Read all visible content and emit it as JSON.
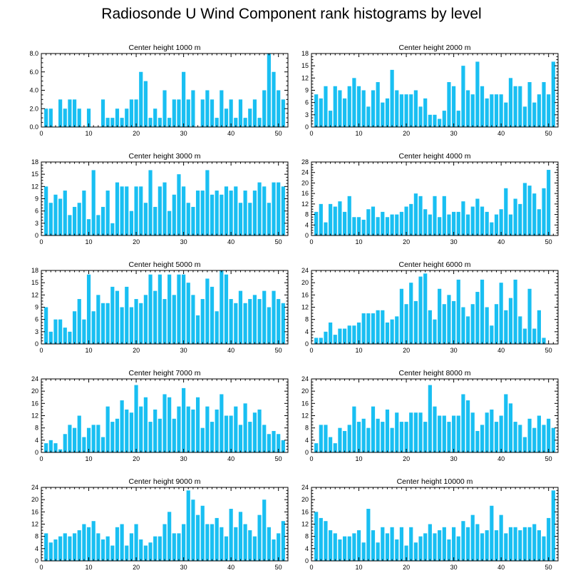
{
  "figure": {
    "title": "Radiosonde U Wind Component rank histograms by level",
    "bar_color": "#19BFF2",
    "axis_color": "#000000"
  },
  "chart_data": [
    {
      "type": "bar",
      "title": "Center height 1000 m",
      "xlim": [
        0,
        52
      ],
      "xticks": [
        0,
        10,
        20,
        30,
        40,
        50
      ],
      "ylim": [
        0,
        8
      ],
      "yticks": [
        0,
        2,
        4,
        6,
        8
      ],
      "ytick_labels": [
        "0.0",
        "2.0",
        "4.0",
        "6.0",
        "8.0"
      ],
      "x": [
        1,
        2,
        3,
        4,
        5,
        6,
        7,
        8,
        9,
        10,
        11,
        12,
        13,
        14,
        15,
        16,
        17,
        18,
        19,
        20,
        21,
        22,
        23,
        24,
        25,
        26,
        27,
        28,
        29,
        30,
        31,
        32,
        33,
        34,
        35,
        36,
        37,
        38,
        39,
        40,
        41,
        42,
        43,
        44,
        45,
        46,
        47,
        48,
        49,
        50,
        51
      ],
      "values": [
        2,
        2,
        0,
        3,
        2,
        3,
        3,
        2,
        0,
        2,
        0,
        0,
        3,
        1,
        1,
        2,
        1,
        2,
        3,
        3,
        6,
        5,
        1,
        2,
        1,
        4,
        1,
        3,
        3,
        6,
        3,
        4,
        0,
        3,
        4,
        3,
        1,
        4,
        2,
        3,
        1,
        3,
        1,
        2,
        3,
        1,
        4,
        8,
        6,
        4,
        3
      ]
    },
    {
      "type": "bar",
      "title": "Center height 2000 m",
      "xlim": [
        0,
        52
      ],
      "xticks": [
        0,
        10,
        20,
        30,
        40,
        50
      ],
      "ylim": [
        0,
        18
      ],
      "yticks": [
        0,
        3,
        6,
        9,
        12,
        15,
        18
      ],
      "ytick_labels": [
        "0",
        "3",
        "6",
        "9",
        "12",
        "15",
        "18"
      ],
      "x": [
        1,
        2,
        3,
        4,
        5,
        6,
        7,
        8,
        9,
        10,
        11,
        12,
        13,
        14,
        15,
        16,
        17,
        18,
        19,
        20,
        21,
        22,
        23,
        24,
        25,
        26,
        27,
        28,
        29,
        30,
        31,
        32,
        33,
        34,
        35,
        36,
        37,
        38,
        39,
        40,
        41,
        42,
        43,
        44,
        45,
        46,
        47,
        48,
        49,
        50,
        51
      ],
      "values": [
        8,
        7,
        10,
        4,
        10,
        9,
        7,
        10,
        12,
        10,
        9,
        5,
        9,
        11,
        6,
        7,
        14,
        9,
        8,
        8,
        8,
        9,
        5,
        7,
        3,
        3,
        2,
        4,
        11,
        10,
        4,
        15,
        9,
        8,
        16,
        10,
        7,
        8,
        8,
        8,
        6,
        12,
        10,
        10,
        5,
        11,
        6,
        8,
        11,
        8,
        16
      ]
    },
    {
      "type": "bar",
      "title": "Center height 3000 m",
      "xlim": [
        0,
        52
      ],
      "xticks": [
        0,
        10,
        20,
        30,
        40,
        50
      ],
      "ylim": [
        0,
        18
      ],
      "yticks": [
        0,
        3,
        6,
        9,
        12,
        15,
        18
      ],
      "ytick_labels": [
        "0",
        "3",
        "6",
        "9",
        "12",
        "15",
        "18"
      ],
      "x": [
        1,
        2,
        3,
        4,
        5,
        6,
        7,
        8,
        9,
        10,
        11,
        12,
        13,
        14,
        15,
        16,
        17,
        18,
        19,
        20,
        21,
        22,
        23,
        24,
        25,
        26,
        27,
        28,
        29,
        30,
        31,
        32,
        33,
        34,
        35,
        36,
        37,
        38,
        39,
        40,
        41,
        42,
        43,
        44,
        45,
        46,
        47,
        48,
        49,
        50,
        51
      ],
      "values": [
        12,
        8,
        10,
        9,
        11,
        5,
        7,
        8,
        11,
        4,
        16,
        5,
        7,
        11,
        3,
        13,
        12,
        12,
        6,
        12,
        12,
        8,
        16,
        7,
        12,
        13,
        6,
        10,
        15,
        12,
        8,
        7,
        11,
        11,
        16,
        10,
        11,
        10,
        12,
        11,
        12,
        8,
        11,
        8,
        11,
        13,
        12,
        8,
        13,
        13,
        12
      ]
    },
    {
      "type": "bar",
      "title": "Center height 4000 m",
      "xlim": [
        0,
        52
      ],
      "xticks": [
        0,
        10,
        20,
        30,
        40,
        50
      ],
      "ylim": [
        0,
        28
      ],
      "yticks": [
        0,
        4,
        8,
        12,
        16,
        20,
        24,
        28
      ],
      "ytick_labels": [
        "0",
        "4",
        "8",
        "12",
        "16",
        "20",
        "24",
        "28"
      ],
      "x": [
        1,
        2,
        3,
        4,
        5,
        6,
        7,
        8,
        9,
        10,
        11,
        12,
        13,
        14,
        15,
        16,
        17,
        18,
        19,
        20,
        21,
        22,
        23,
        24,
        25,
        26,
        27,
        28,
        29,
        30,
        31,
        32,
        33,
        34,
        35,
        36,
        37,
        38,
        39,
        40,
        41,
        42,
        43,
        44,
        45,
        46,
        47,
        48,
        49,
        50,
        51
      ],
      "values": [
        9,
        12,
        5,
        12,
        11,
        13,
        9,
        15,
        7,
        7,
        6,
        10,
        11,
        7,
        9,
        7,
        8,
        8,
        9,
        11,
        12,
        16,
        15,
        10,
        8,
        15,
        7,
        15,
        8,
        9,
        9,
        13,
        8,
        11,
        14,
        11,
        9,
        5,
        8,
        10,
        18,
        8,
        14,
        12,
        20,
        19,
        16,
        10,
        18,
        25,
        0
      ]
    },
    {
      "type": "bar",
      "title": "Center height 5000 m",
      "xlim": [
        0,
        52
      ],
      "xticks": [
        0,
        10,
        20,
        30,
        40,
        50
      ],
      "ylim": [
        0,
        18
      ],
      "yticks": [
        0,
        3,
        6,
        9,
        12,
        15,
        18
      ],
      "ytick_labels": [
        "0",
        "3",
        "6",
        "9",
        "12",
        "15",
        "18"
      ],
      "x": [
        1,
        2,
        3,
        4,
        5,
        6,
        7,
        8,
        9,
        10,
        11,
        12,
        13,
        14,
        15,
        16,
        17,
        18,
        19,
        20,
        21,
        22,
        23,
        24,
        25,
        26,
        27,
        28,
        29,
        30,
        31,
        32,
        33,
        34,
        35,
        36,
        37,
        38,
        39,
        40,
        41,
        42,
        43,
        44,
        45,
        46,
        47,
        48,
        49,
        50,
        51
      ],
      "values": [
        9,
        3,
        6,
        6,
        4,
        3,
        8,
        11,
        6,
        17,
        8,
        12,
        10,
        10,
        14,
        13,
        9,
        14,
        9,
        11,
        10,
        12,
        17,
        13,
        17,
        11,
        17,
        12,
        17,
        17,
        15,
        12,
        7,
        11,
        16,
        14,
        8,
        18,
        17,
        11,
        10,
        13,
        10,
        11,
        12,
        11,
        13,
        9,
        13,
        11,
        10
      ]
    },
    {
      "type": "bar",
      "title": "Center height 6000 m",
      "xlim": [
        0,
        52
      ],
      "xticks": [
        0,
        10,
        20,
        30,
        40,
        50
      ],
      "ylim": [
        0,
        24
      ],
      "yticks": [
        0,
        4,
        8,
        12,
        16,
        20,
        24
      ],
      "ytick_labels": [
        "0",
        "4",
        "8",
        "12",
        "16",
        "20",
        "24"
      ],
      "x": [
        1,
        2,
        3,
        4,
        5,
        6,
        7,
        8,
        9,
        10,
        11,
        12,
        13,
        14,
        15,
        16,
        17,
        18,
        19,
        20,
        21,
        22,
        23,
        24,
        25,
        26,
        27,
        28,
        29,
        30,
        31,
        32,
        33,
        34,
        35,
        36,
        37,
        38,
        39,
        40,
        41,
        42,
        43,
        44,
        45,
        46,
        47,
        48,
        49,
        50,
        51
      ],
      "values": [
        2,
        2,
        4,
        7,
        3,
        5,
        5,
        6,
        6,
        7,
        10,
        10,
        10,
        11,
        11,
        7,
        8,
        9,
        18,
        13,
        20,
        14,
        22,
        23,
        11,
        8,
        18,
        13,
        16,
        14,
        21,
        12,
        9,
        13,
        17,
        21,
        12,
        6,
        13,
        20,
        11,
        15,
        21,
        9,
        5,
        18,
        5,
        11,
        2,
        0,
        0
      ]
    },
    {
      "type": "bar",
      "title": "Center height 7000 m",
      "xlim": [
        0,
        52
      ],
      "xticks": [
        0,
        10,
        20,
        30,
        40,
        50
      ],
      "ylim": [
        0,
        24
      ],
      "yticks": [
        0,
        4,
        8,
        12,
        16,
        20,
        24
      ],
      "ytick_labels": [
        "0",
        "4",
        "8",
        "12",
        "16",
        "20",
        "24"
      ],
      "x": [
        1,
        2,
        3,
        4,
        5,
        6,
        7,
        8,
        9,
        10,
        11,
        12,
        13,
        14,
        15,
        16,
        17,
        18,
        19,
        20,
        21,
        22,
        23,
        24,
        25,
        26,
        27,
        28,
        29,
        30,
        31,
        32,
        33,
        34,
        35,
        36,
        37,
        38,
        39,
        40,
        41,
        42,
        43,
        44,
        45,
        46,
        47,
        48,
        49,
        50,
        51
      ],
      "values": [
        3,
        4,
        3,
        1,
        6,
        9,
        8,
        12,
        5,
        8,
        9,
        9,
        5,
        15,
        10,
        11,
        17,
        14,
        13,
        22,
        15,
        18,
        10,
        14,
        11,
        19,
        18,
        11,
        15,
        21,
        15,
        14,
        18,
        8,
        15,
        10,
        14,
        19,
        12,
        12,
        15,
        9,
        16,
        10,
        13,
        14,
        9,
        6,
        7,
        6,
        4
      ]
    },
    {
      "type": "bar",
      "title": "Center height 8000 m",
      "xlim": [
        0,
        52
      ],
      "xticks": [
        0,
        10,
        20,
        30,
        40,
        50
      ],
      "ylim": [
        0,
        24
      ],
      "yticks": [
        0,
        4,
        8,
        12,
        16,
        20,
        24
      ],
      "ytick_labels": [
        "0",
        "4",
        "8",
        "12",
        "16",
        "20",
        "24"
      ],
      "x": [
        1,
        2,
        3,
        4,
        5,
        6,
        7,
        8,
        9,
        10,
        11,
        12,
        13,
        14,
        15,
        16,
        17,
        18,
        19,
        20,
        21,
        22,
        23,
        24,
        25,
        26,
        27,
        28,
        29,
        30,
        31,
        32,
        33,
        34,
        35,
        36,
        37,
        38,
        39,
        40,
        41,
        42,
        43,
        44,
        45,
        46,
        47,
        48,
        49,
        50,
        51
      ],
      "values": [
        3,
        9,
        9,
        5,
        3,
        8,
        7,
        9,
        15,
        10,
        11,
        8,
        15,
        11,
        10,
        14,
        8,
        13,
        10,
        10,
        13,
        13,
        13,
        10,
        22,
        15,
        12,
        12,
        10,
        12,
        12,
        19,
        17,
        13,
        7,
        9,
        13,
        14,
        10,
        12,
        19,
        16,
        10,
        9,
        5,
        11,
        8,
        12,
        9,
        11,
        8
      ]
    },
    {
      "type": "bar",
      "title": "Center height 9000 m",
      "xlim": [
        0,
        52
      ],
      "xticks": [
        0,
        10,
        20,
        30,
        40,
        50
      ],
      "ylim": [
        0,
        24
      ],
      "yticks": [
        0,
        4,
        8,
        12,
        16,
        20,
        24
      ],
      "ytick_labels": [
        "0",
        "4",
        "8",
        "12",
        "16",
        "20",
        "24"
      ],
      "x": [
        1,
        2,
        3,
        4,
        5,
        6,
        7,
        8,
        9,
        10,
        11,
        12,
        13,
        14,
        15,
        16,
        17,
        18,
        19,
        20,
        21,
        22,
        23,
        24,
        25,
        26,
        27,
        28,
        29,
        30,
        31,
        32,
        33,
        34,
        35,
        36,
        37,
        38,
        39,
        40,
        41,
        42,
        43,
        44,
        45,
        46,
        47,
        48,
        49,
        50,
        51
      ],
      "values": [
        9,
        6,
        7,
        8,
        9,
        8,
        9,
        10,
        12,
        11,
        13,
        9,
        7,
        8,
        5,
        11,
        12,
        5,
        9,
        12,
        7,
        5,
        6,
        8,
        8,
        12,
        16,
        9,
        9,
        12,
        23,
        20,
        15,
        18,
        12,
        12,
        14,
        11,
        8,
        17,
        11,
        16,
        12,
        10,
        8,
        15,
        20,
        11,
        7,
        9,
        13
      ]
    },
    {
      "type": "bar",
      "title": "Center height 10000 m",
      "xlim": [
        0,
        52
      ],
      "xticks": [
        0,
        10,
        20,
        30,
        40,
        50
      ],
      "ylim": [
        0,
        24
      ],
      "yticks": [
        0,
        4,
        8,
        12,
        16,
        20,
        24
      ],
      "ytick_labels": [
        "0",
        "4",
        "8",
        "12",
        "16",
        "20",
        "24"
      ],
      "x": [
        1,
        2,
        3,
        4,
        5,
        6,
        7,
        8,
        9,
        10,
        11,
        12,
        13,
        14,
        15,
        16,
        17,
        18,
        19,
        20,
        21,
        22,
        23,
        24,
        25,
        26,
        27,
        28,
        29,
        30,
        31,
        32,
        33,
        34,
        35,
        36,
        37,
        38,
        39,
        40,
        41,
        42,
        43,
        44,
        45,
        46,
        47,
        48,
        49,
        50,
        51
      ],
      "values": [
        16,
        14,
        13,
        10,
        9,
        7,
        8,
        8,
        9,
        10,
        6,
        17,
        10,
        6,
        11,
        9,
        11,
        7,
        11,
        5,
        11,
        6,
        8,
        9,
        12,
        9,
        10,
        11,
        7,
        11,
        8,
        13,
        11,
        15,
        12,
        9,
        10,
        18,
        10,
        15,
        9,
        11,
        11,
        10,
        11,
        11,
        12,
        10,
        8,
        14,
        23
      ]
    }
  ]
}
